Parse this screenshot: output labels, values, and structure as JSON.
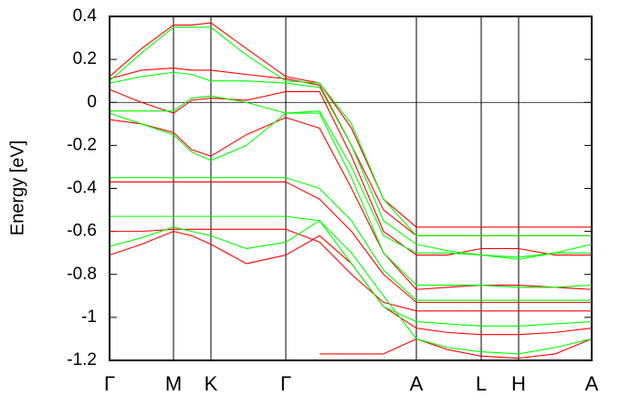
{
  "chart_data": {
    "type": "line",
    "ylabel": "Energy [eV]",
    "x": [
      0,
      35,
      70,
      90,
      111,
      150,
      193,
      230,
      265,
      300,
      336,
      370,
      407,
      448,
      488,
      528
    ],
    "xlim": [
      0,
      528
    ],
    "xticks": [
      {
        "value": 0,
        "label": "Γ"
      },
      {
        "value": 70,
        "label": "M"
      },
      {
        "value": 111,
        "label": "K"
      },
      {
        "value": 193,
        "label": "Γ"
      },
      {
        "value": 336,
        "label": "A"
      },
      {
        "value": 407,
        "label": "L"
      },
      {
        "value": 448,
        "label": "H"
      },
      {
        "value": 528,
        "label": "A"
      }
    ],
    "ylim": [
      -1.2,
      0.4
    ],
    "yticks": [
      0.4,
      0.2,
      0,
      -0.2,
      -0.4,
      -0.6,
      -0.8,
      -1,
      -1.2
    ],
    "grid": true,
    "hline": 0,
    "series": [
      {
        "color": "#ff0000",
        "values": [
          0.12,
          0.25,
          0.36,
          0.36,
          0.37,
          0.25,
          0.12,
          0.09,
          -0.12,
          -0.45,
          -0.58,
          -0.58,
          -0.58,
          -0.58,
          -0.58,
          -0.58
        ]
      },
      {
        "color": "#ff0000",
        "values": [
          0.11,
          0.15,
          0.16,
          0.15,
          0.15,
          0.13,
          0.11,
          0.08,
          -0.2,
          -0.5,
          -0.62,
          -0.62,
          -0.62,
          -0.62,
          -0.62,
          -0.62
        ]
      },
      {
        "color": "#ff0000",
        "values": [
          0.06,
          0.0,
          -0.05,
          0.01,
          0.02,
          0.01,
          0.05,
          0.05,
          -0.25,
          -0.6,
          -0.71,
          -0.71,
          -0.68,
          -0.68,
          -0.71,
          -0.71
        ]
      },
      {
        "color": "#ff0000",
        "values": [
          -0.08,
          -0.1,
          -0.14,
          -0.22,
          -0.25,
          -0.15,
          -0.07,
          -0.12,
          -0.4,
          -0.7,
          -0.87,
          -0.86,
          -0.85,
          -0.85,
          -0.86,
          -0.87
        ]
      },
      {
        "color": "#ff0000",
        "values": [
          -0.37,
          -0.37,
          -0.37,
          -0.37,
          -0.37,
          -0.37,
          -0.37,
          -0.45,
          -0.6,
          -0.8,
          -0.93,
          -0.93,
          -0.93,
          -0.93,
          -0.93,
          -0.93
        ]
      },
      {
        "color": "#ff0000",
        "values": [
          -0.6,
          -0.6,
          -0.59,
          -0.59,
          -0.59,
          -0.59,
          -0.59,
          -0.65,
          -0.8,
          -0.93,
          -0.97,
          -0.97,
          -0.97,
          -0.97,
          -0.97,
          -0.97
        ]
      },
      {
        "color": "#ff0000",
        "values": [
          -0.71,
          -0.66,
          -0.6,
          -0.62,
          -0.66,
          -0.75,
          -0.71,
          -0.62,
          -0.75,
          -0.95,
          -1.05,
          -1.07,
          -1.08,
          -1.08,
          -1.07,
          -1.05
        ]
      },
      {
        "color": "#ff0000",
        "values": [
          null,
          null,
          null,
          null,
          null,
          null,
          null,
          -1.17,
          -1.17,
          -1.17,
          -1.1,
          -1.15,
          -1.18,
          -1.19,
          -1.17,
          -1.1
        ]
      },
      {
        "color": "#00ff00",
        "values": [
          0.1,
          0.23,
          0.35,
          0.35,
          0.35,
          0.22,
          0.1,
          0.09,
          -0.1,
          -0.45,
          -0.62,
          -0.62,
          -0.62,
          -0.62,
          -0.62,
          -0.62
        ]
      },
      {
        "color": "#00ff00",
        "values": [
          0.09,
          0.12,
          0.14,
          0.13,
          0.1,
          0.1,
          0.09,
          0.07,
          -0.2,
          -0.55,
          -0.66,
          -0.69,
          -0.71,
          -0.73,
          -0.7,
          -0.66
        ]
      },
      {
        "color": "#00ff00",
        "values": [
          -0.04,
          -0.04,
          -0.04,
          0.02,
          0.03,
          0.0,
          -0.05,
          -0.04,
          -0.3,
          -0.62,
          -0.7,
          -0.7,
          -0.71,
          -0.72,
          -0.7,
          -0.7
        ]
      },
      {
        "color": "#00ff00",
        "values": [
          -0.05,
          -0.1,
          -0.15,
          -0.23,
          -0.27,
          -0.2,
          -0.05,
          -0.05,
          -0.35,
          -0.7,
          -0.85,
          -0.85,
          -0.85,
          -0.86,
          -0.86,
          -0.85
        ]
      },
      {
        "color": "#00ff00",
        "values": [
          -0.35,
          -0.35,
          -0.35,
          -0.35,
          -0.35,
          -0.35,
          -0.35,
          -0.4,
          -0.55,
          -0.78,
          -0.92,
          -0.92,
          -0.92,
          -0.92,
          -0.92,
          -0.92
        ]
      },
      {
        "color": "#00ff00",
        "values": [
          -0.53,
          -0.53,
          -0.53,
          -0.53,
          -0.53,
          -0.53,
          -0.53,
          -0.55,
          -0.75,
          -0.95,
          -1.02,
          -1.03,
          -1.04,
          -1.04,
          -1.03,
          -1.02
        ]
      },
      {
        "color": "#00ff00",
        "values": [
          -0.67,
          -0.63,
          -0.58,
          -0.6,
          -0.62,
          -0.68,
          -0.65,
          -0.55,
          -0.7,
          -0.9,
          -1.1,
          -1.14,
          -1.16,
          -1.17,
          -1.14,
          -1.1
        ]
      }
    ]
  }
}
